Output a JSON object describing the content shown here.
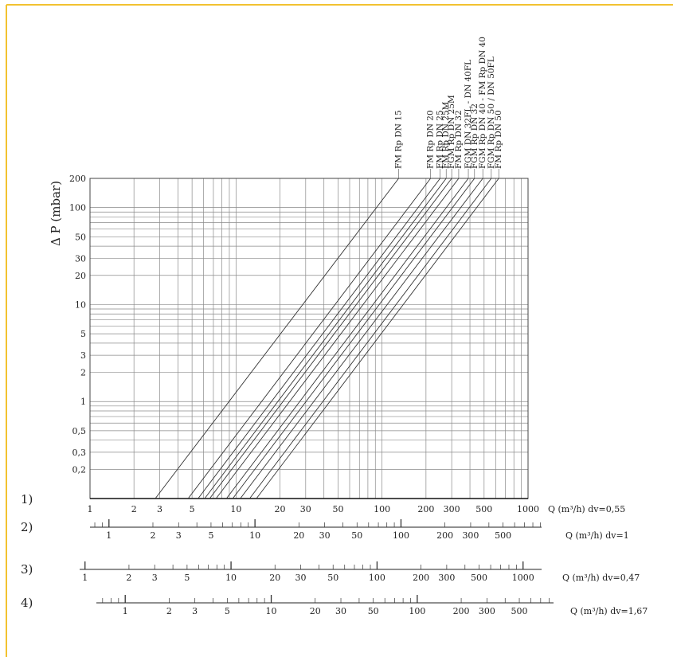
{
  "chart_data": {
    "type": "line",
    "ylabel": "Δ P (mbar)",
    "x_scale": "log",
    "y_scale": "log",
    "xlim": [
      1,
      1000
    ],
    "ylim": [
      0.1,
      200
    ],
    "x_ticks": [
      1,
      2,
      3,
      5,
      10,
      20,
      30,
      50,
      100,
      200,
      300,
      500,
      1000
    ],
    "y_ticks": [
      0.2,
      0.3,
      0.5,
      1,
      2,
      3,
      5,
      10,
      20,
      30,
      50,
      100,
      200
    ],
    "y_tick_labels": [
      "0,2",
      "0,3",
      "0,5",
      "1",
      "2",
      "3",
      "5",
      "10",
      "20",
      "30",
      "50",
      "100",
      "200"
    ],
    "grid": true,
    "series": [
      {
        "name": "FM Rp DN 15",
        "x": [
          2.8,
          130
        ],
        "y": [
          0.1,
          200
        ]
      },
      {
        "name": "FM Rp DN 20",
        "x": [
          4.7,
          215
        ],
        "y": [
          0.1,
          200
        ]
      },
      {
        "name": "FM Rp DN 25",
        "x": [
          5.5,
          250
        ],
        "y": [
          0.1,
          200
        ]
      },
      {
        "name": "FM Rp DN 25M",
        "x": [
          6.1,
          275
        ],
        "y": [
          0.1,
          200
        ]
      },
      {
        "name": "FGM Rp DN 25M",
        "x": [
          6.6,
          300
        ],
        "y": [
          0.1,
          200
        ]
      },
      {
        "name": "FM Rp DN 32",
        "x": [
          7.3,
          335
        ],
        "y": [
          0.1,
          200
        ]
      },
      {
        "name": "FGM DN 32FL - DN 40FL",
        "x": [
          8.6,
          390
        ],
        "y": [
          0.1,
          200
        ]
      },
      {
        "name": "FGM Rp DN 32",
        "x": [
          9.5,
          430
        ],
        "y": [
          0.1,
          200
        ]
      },
      {
        "name": "FGM Rp DN 40 - FM Rp DN 40",
        "x": [
          10.7,
          490
        ],
        "y": [
          0.1,
          200
        ]
      },
      {
        "name": "FGM Rp DN 50 / DN 50FL",
        "x": [
          12.4,
          560
        ],
        "y": [
          0.1,
          200
        ]
      },
      {
        "name": "FM Rp DN 50",
        "x": [
          13.8,
          630
        ],
        "y": [
          0.1,
          200
        ]
      }
    ],
    "scales": [
      {
        "label": "1)",
        "unit": "Q (m³/h)  dv=0,55",
        "factor": 1
      },
      {
        "label": "2)",
        "unit": "Q (m³/h)  dv=1",
        "factor": 1.3483997
      },
      {
        "label": "3)",
        "unit": "Q (m³/h)  dv=0,47",
        "factor": 0.9244
      },
      {
        "label": "4)",
        "unit": "Q (m³/h)  dv=1,67",
        "factor": 1.7425
      }
    ],
    "scale_tick_labels": [
      "1",
      "2",
      "3",
      "5",
      "10",
      "20",
      "30",
      "50",
      "100",
      "200",
      "300",
      "500",
      "1000"
    ]
  }
}
